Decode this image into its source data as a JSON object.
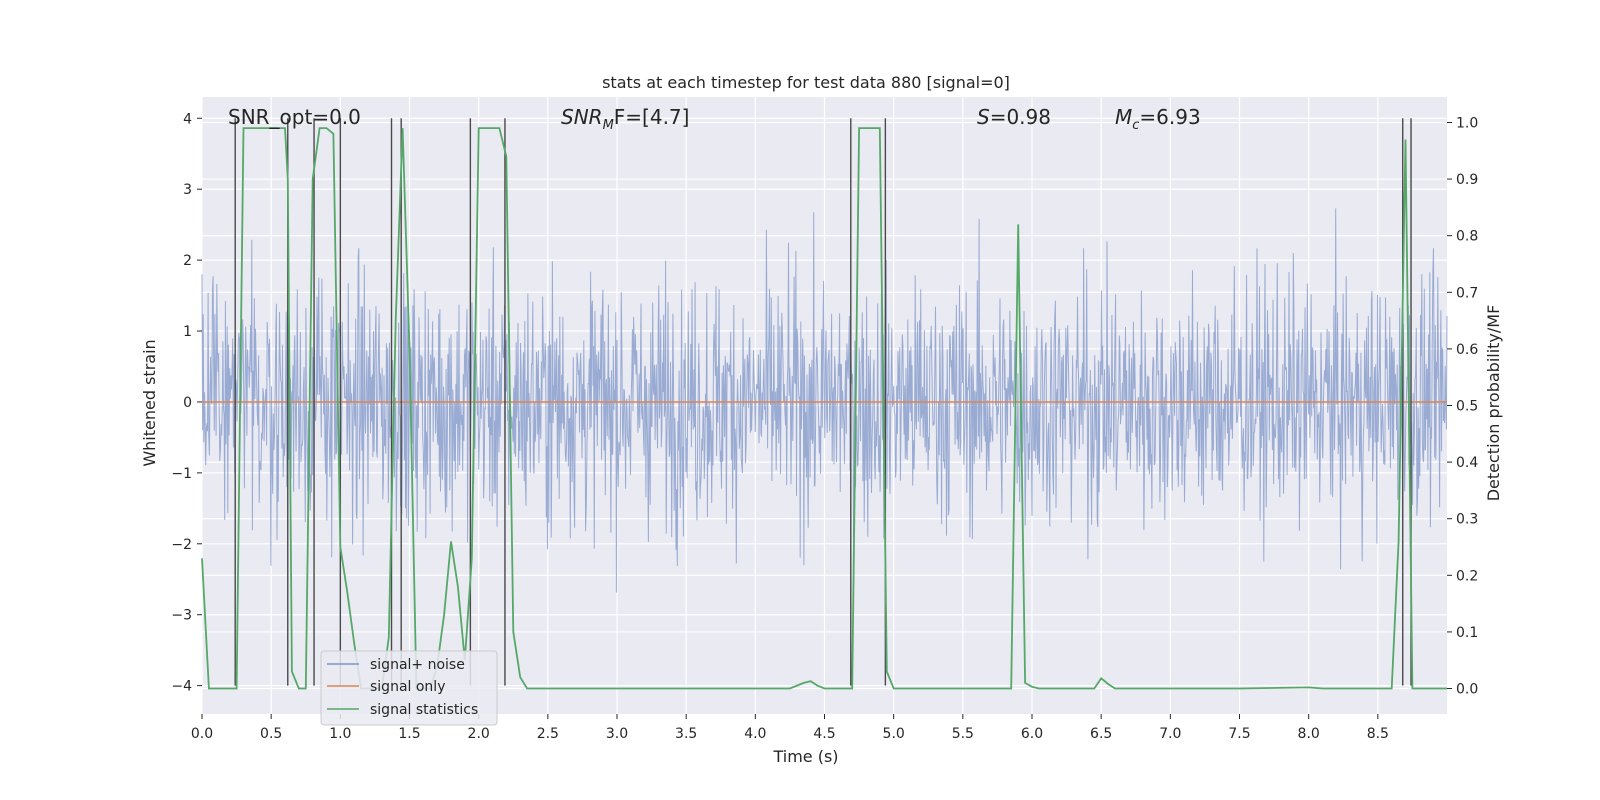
{
  "chart_data": {
    "type": "line",
    "title": "stats at each timestep for test data 880 [signal=0]",
    "xlabel": "Time (s)",
    "ylabel": "Whitened strain",
    "y2label": "Detection probability/MF",
    "xlim": [
      0,
      9.0
    ],
    "ylim": [
      -4.4,
      4.3
    ],
    "y2lim": [
      -0.045,
      1.045
    ],
    "x_ticks": [
      0.0,
      0.5,
      1.0,
      1.5,
      2.0,
      2.5,
      3.0,
      3.5,
      4.0,
      4.5,
      5.0,
      5.5,
      6.0,
      6.5,
      7.0,
      7.5,
      8.0,
      8.5
    ],
    "x_tick_labels": [
      "0.0",
      "0.5",
      "1.0",
      "1.5",
      "2.0",
      "2.5",
      "3.0",
      "3.5",
      "4.0",
      "4.5",
      "5.0",
      "5.5",
      "6.0",
      "6.5",
      "7.0",
      "7.5",
      "8.0",
      "8.5"
    ],
    "y_ticks": [
      -4,
      -3,
      -2,
      -1,
      0,
      1,
      2,
      3,
      4
    ],
    "y_tick_labels": [
      "−4",
      "−3",
      "−2",
      "−1",
      "0",
      "1",
      "2",
      "3",
      "4"
    ],
    "y2_ticks": [
      0.0,
      0.1,
      0.2,
      0.3,
      0.4,
      0.5,
      0.6,
      0.7,
      0.8,
      0.9,
      1.0
    ],
    "y2_tick_labels": [
      "0.0",
      "0.1",
      "0.2",
      "0.3",
      "0.4",
      "0.5",
      "0.6",
      "0.7",
      "0.8",
      "0.9",
      "1.0"
    ],
    "grid": true,
    "legend_position": "lower-left",
    "series": [
      {
        "name": "signal+ noise",
        "axis": "left",
        "color": "#7d95c8",
        "description_only": false,
        "noise_std": 1.0,
        "noise_range": [
          -4.0,
          3.8
        ],
        "sample_rate_hz": 225
      },
      {
        "name": "signal only",
        "axis": "left",
        "color": "#dd8452",
        "x": [
          0.0,
          9.0
        ],
        "y": [
          0.0,
          0.0
        ]
      },
      {
        "name": "signal statistics",
        "axis": "right",
        "color": "#55a868",
        "x": [
          0.0,
          0.05,
          0.1,
          0.2,
          0.25,
          0.3,
          0.35,
          0.4,
          0.45,
          0.5,
          0.55,
          0.6,
          0.62,
          0.65,
          0.7,
          0.75,
          0.8,
          0.85,
          0.88,
          0.9,
          0.95,
          1.0,
          1.05,
          1.1,
          1.15,
          1.2,
          1.3,
          1.35,
          1.4,
          1.45,
          1.5,
          1.55,
          1.6,
          1.65,
          1.7,
          1.75,
          1.8,
          1.85,
          1.9,
          1.95,
          2.0,
          2.05,
          2.1,
          2.15,
          2.2,
          2.25,
          2.3,
          2.35,
          2.4,
          2.5,
          3.0,
          3.5,
          4.0,
          4.25,
          4.35,
          4.4,
          4.45,
          4.5,
          4.55,
          4.6,
          4.65,
          4.7,
          4.75,
          4.8,
          4.85,
          4.9,
          4.95,
          5.0,
          5.5,
          5.8,
          5.85,
          5.9,
          5.95,
          6.0,
          6.05,
          6.1,
          6.2,
          6.3,
          6.45,
          6.5,
          6.55,
          6.6,
          6.7,
          7.0,
          7.5,
          8.0,
          8.1,
          8.2,
          8.5,
          8.6,
          8.65,
          8.7,
          8.75,
          8.8,
          8.85,
          8.9,
          9.0
        ],
        "y": [
          0.23,
          0.0,
          0.0,
          0.0,
          0.0,
          0.99,
          0.99,
          0.99,
          0.99,
          0.99,
          0.99,
          0.99,
          0.9,
          0.03,
          0.0,
          0.0,
          0.9,
          0.99,
          0.99,
          0.99,
          0.98,
          0.25,
          0.17,
          0.08,
          0.0,
          0.0,
          0.0,
          0.09,
          0.65,
          0.99,
          0.6,
          0.0,
          0.0,
          0.0,
          0.04,
          0.13,
          0.26,
          0.18,
          0.05,
          0.23,
          0.99,
          0.99,
          0.99,
          0.99,
          0.94,
          0.1,
          0.02,
          0.0,
          0.0,
          0.0,
          0.0,
          0.0,
          0.0,
          0.0,
          0.01,
          0.013,
          0.005,
          0.0,
          0.0,
          0.0,
          0.0,
          0.0,
          0.99,
          0.99,
          0.99,
          0.99,
          0.03,
          0.0,
          0.0,
          0.0,
          0.0,
          0.82,
          0.01,
          0.003,
          0.0,
          0.0,
          0.0,
          0.0,
          0.0,
          0.018,
          0.008,
          0.0,
          0.0,
          0.0,
          0.0,
          0.002,
          0.0,
          0.0,
          0.0,
          0.0,
          0.26,
          0.97,
          0.0,
          0.0,
          0.0,
          0.0,
          0.0
        ]
      }
    ],
    "vlines": [
      0.24,
      0.62,
      0.81,
      1.0,
      1.37,
      1.44,
      1.94,
      2.19,
      4.69,
      4.94,
      8.68,
      8.74
    ],
    "vline_color": "#4a4a4a",
    "annotations": {
      "snr_opt": "SNR_opt=0.0",
      "snr_mf_prefix": "SNR",
      "snr_mf_sub": "M",
      "snr_mf_suffix": "F=[4.7]",
      "s_label": "S",
      "s_value": "=0.98",
      "mc_label": "M",
      "mc_sub": "c",
      "mc_value": "=6.93"
    }
  },
  "colors": {
    "plot_background": "#eaeaf2",
    "grid": "#ffffff",
    "noise": "#7d95c8",
    "signal": "#dd8452",
    "stat": "#55a868"
  }
}
